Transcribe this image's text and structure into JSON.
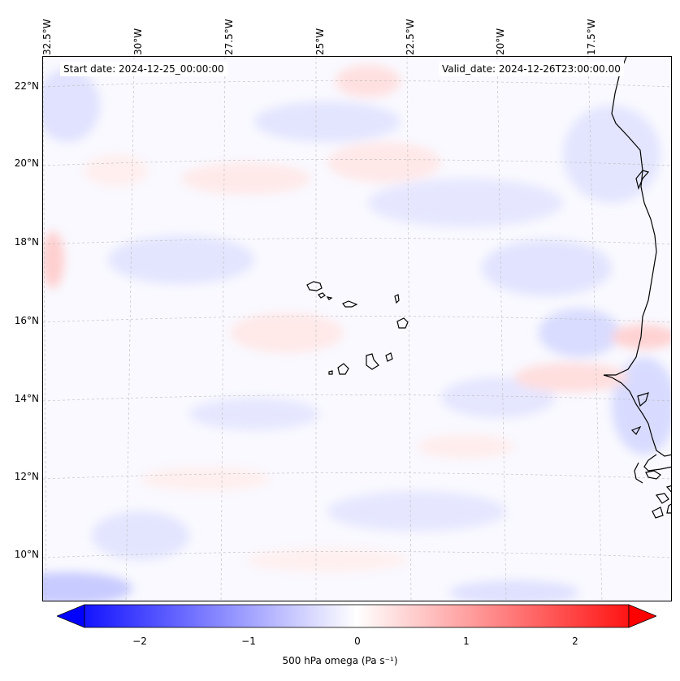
{
  "map": {
    "start_date": "Start date: 2024-12-25_00:00:00",
    "valid_date": "Valid_date: 2024-12-26T23:00:00.00",
    "lon_labels": [
      "32.5°W",
      "30°W",
      "27.5°W",
      "25°W",
      "22.5°W",
      "20°W",
      "17.5°W"
    ],
    "lat_labels": [
      "22°N",
      "20°N",
      "18°N",
      "16°N",
      "14°N",
      "12°N",
      "10°N"
    ],
    "variable": "500 hPa omega",
    "units": "Pa s⁻¹",
    "colormap": "bwr",
    "colorbar": {
      "ticks": [
        "−2",
        "−1",
        "0",
        "1",
        "2"
      ],
      "min": -2.5,
      "max": 2.5,
      "extend": "both",
      "low_color": "#0000ff",
      "mid_color": "#ffffff",
      "high_color": "#ff0000"
    },
    "features": [
      "Cape Verde islands",
      "West African coastline"
    ],
    "gridlines": true
  },
  "colorbar_label_text": "500 hPa omega (Pa s⁻¹)"
}
